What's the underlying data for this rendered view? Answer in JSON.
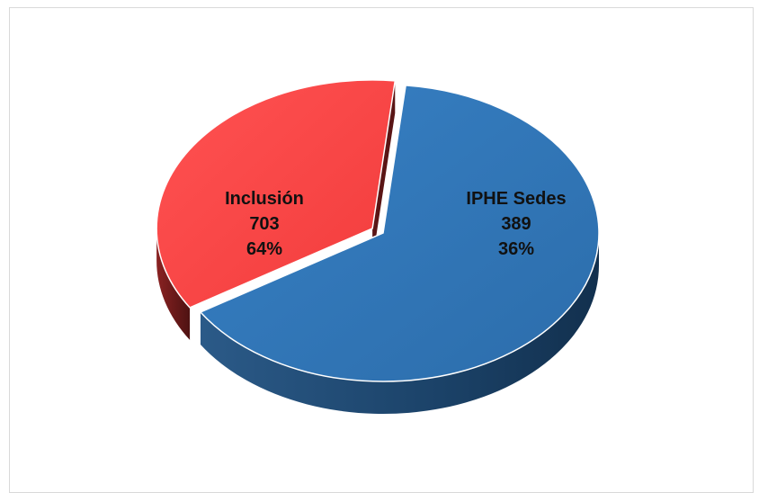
{
  "chart_data": {
    "type": "pie",
    "title": "",
    "legend": "none",
    "slices": [
      {
        "name": "Inclusión",
        "value": 703,
        "percent": "64%",
        "color": "#2f74b5",
        "side_color": "#1a3f62"
      },
      {
        "name": "IPHE Sedes",
        "value": 389,
        "percent": "36%",
        "color": "#ff4747",
        "side_color": "#6e1a1a"
      }
    ]
  }
}
